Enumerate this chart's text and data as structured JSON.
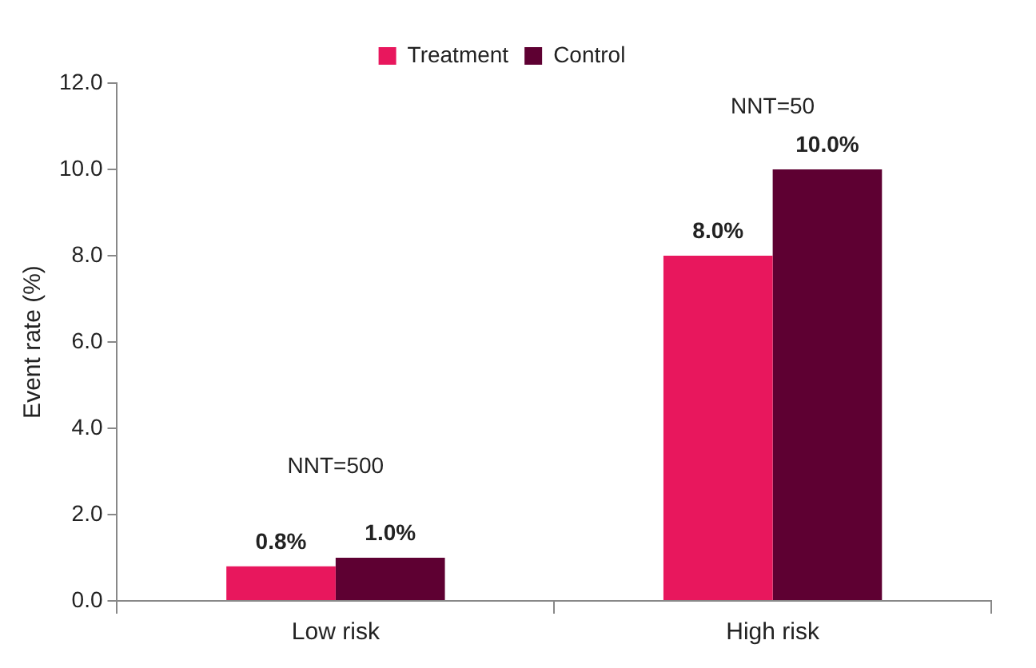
{
  "chart_data": {
    "type": "bar",
    "ylabel": "Event rate (%)",
    "categories": [
      "Low risk",
      "High risk"
    ],
    "series": [
      {
        "name": "Treatment",
        "color": "#e8175d",
        "values": [
          0.8,
          8.0
        ],
        "value_labels": [
          "0.8%",
          "8.0%"
        ]
      },
      {
        "name": "Control",
        "color": "#5e0032",
        "values": [
          1.0,
          10.0
        ],
        "value_labels": [
          "1.0%",
          "10.0%"
        ]
      }
    ],
    "ylim": [
      0,
      12
    ],
    "yticks": [
      {
        "value": 0,
        "label": "0.0"
      },
      {
        "value": 2,
        "label": "2.0"
      },
      {
        "value": 4,
        "label": "4.0"
      },
      {
        "value": 6,
        "label": "6.0"
      },
      {
        "value": 8,
        "label": "8.0"
      },
      {
        "value": 10,
        "label": "10.0"
      },
      {
        "value": 12,
        "label": "12.0"
      }
    ],
    "annotations": [
      "NNT=500",
      "NNT=50"
    ],
    "grid": false,
    "legend": "top"
  }
}
